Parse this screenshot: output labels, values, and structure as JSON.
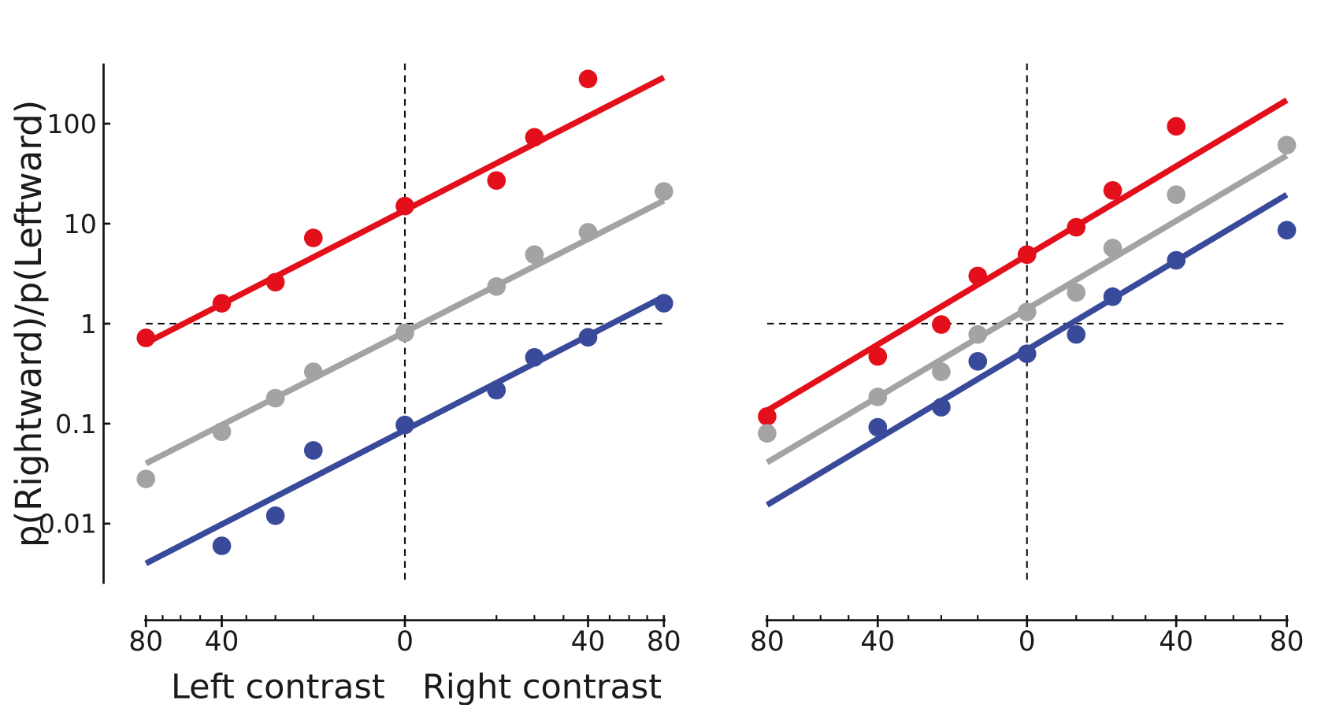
{
  "chart_data": [
    {
      "type": "scatter",
      "xpower": 0.5,
      "xlim": [
        -80,
        80
      ],
      "xticks": [
        {
          "value": -80,
          "label": "80"
        },
        {
          "value": -40,
          "label": "40"
        },
        0,
        40,
        80
      ],
      "xminorticks": [
        -70,
        -60,
        -50,
        -30,
        -20,
        -10,
        10,
        20,
        30,
        50,
        60,
        70
      ],
      "ylim": [
        0.0025,
        400
      ],
      "log_y": true,
      "yticks": [
        0.01,
        0.1,
        1,
        10,
        100
      ],
      "ylabel": "p(Rightward)/p(Leftward)",
      "xlabel_left": "Left contrast",
      "xlabel_right": "Right contrast",
      "hline": 1,
      "vline": 0,
      "x": [
        -80,
        -40,
        -20,
        -10,
        0,
        10,
        20,
        40,
        80
      ],
      "series": [
        {
          "color": "#e3101b",
          "values": [
            0.72,
            1.6,
            2.6,
            7.2,
            15,
            27,
            73,
            280,
            null
          ],
          "fit_x": [
            -80,
            80
          ],
          "fit_values": [
            0.64,
            290
          ]
        },
        {
          "color": "#a3a3a3",
          "values": [
            0.028,
            0.083,
            0.18,
            0.33,
            0.81,
            2.35,
            4.9,
            8.2,
            21
          ],
          "fit_x": [
            -80,
            80
          ],
          "fit_values": [
            0.04,
            17
          ]
        },
        {
          "color": "#3a4a9a",
          "values": [
            null,
            0.006,
            0.012,
            0.054,
            0.097,
            0.216,
            0.46,
            0.73,
            1.6
          ],
          "fit_x": [
            -80,
            80
          ],
          "fit_values": [
            0.004,
            1.86
          ]
        }
      ]
    },
    {
      "type": "scatter",
      "xpower": 0.8,
      "xlim": [
        -80,
        80
      ],
      "xticks": [
        {
          "value": -80,
          "label": "80"
        },
        {
          "value": -40,
          "label": "40"
        },
        0,
        40,
        80
      ],
      "xminorticks": [
        -70,
        -60,
        -50,
        -30,
        -20,
        -10,
        10,
        20,
        30,
        50,
        60,
        70
      ],
      "ylim": [
        0.0025,
        400
      ],
      "log_y": true,
      "hline": 1,
      "vline": 0,
      "x": [
        -80,
        -40,
        -20,
        -10,
        0,
        10,
        20,
        40,
        80
      ],
      "series": [
        {
          "color": "#e3101b",
          "values": [
            0.118,
            0.47,
            0.98,
            3.0,
            4.9,
            9.2,
            21.5,
            94,
            null
          ],
          "fit_x": [
            -80,
            80
          ],
          "fit_values": [
            0.135,
            172
          ]
        },
        {
          "color": "#a3a3a3",
          "values": [
            0.08,
            0.185,
            0.33,
            0.78,
            1.31,
            2.05,
            5.7,
            19.5,
            61
          ],
          "fit_x": [
            -80,
            80
          ],
          "fit_values": [
            0.041,
            48
          ]
        },
        {
          "color": "#3a4a9a",
          "values": [
            null,
            0.092,
            0.146,
            0.42,
            0.5,
            0.78,
            1.86,
            4.3,
            8.6
          ],
          "fit_x": [
            -80,
            80
          ],
          "fit_values": [
            0.0154,
            19.5
          ]
        }
      ]
    }
  ]
}
